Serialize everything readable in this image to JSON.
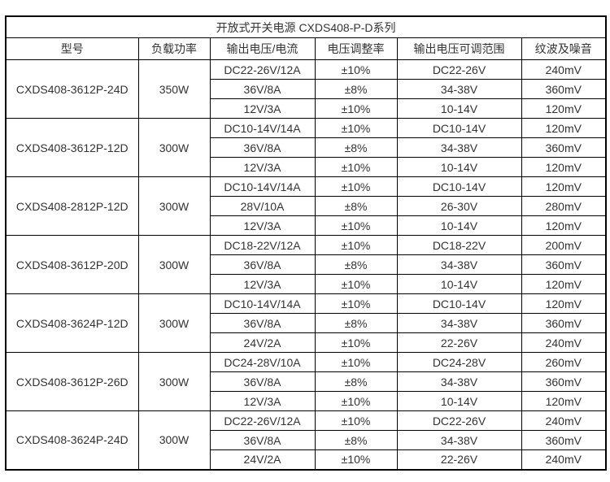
{
  "table": {
    "title": "开放式开关电源 CXDS408-P-D系列",
    "columns": [
      "型号",
      "负载功率",
      "输出电压/电流",
      "电压调整率",
      "输出电压可调范围",
      "纹波及噪音"
    ],
    "groups": [
      {
        "model": "CXDS408-3612P-24D",
        "power": "350W",
        "rows": [
          {
            "output": "DC22-26V/12A",
            "regulation": "±10%",
            "range": "DC22-26V",
            "ripple": "240mV"
          },
          {
            "output": "36V/8A",
            "regulation": "±8%",
            "range": "34-38V",
            "ripple": "360mV"
          },
          {
            "output": "12V/3A",
            "regulation": "±10%",
            "range": "10-14V",
            "ripple": "120mV"
          }
        ]
      },
      {
        "model": "CXDS408-3612P-12D",
        "power": "300W",
        "rows": [
          {
            "output": "DC10-14V/14A",
            "regulation": "±10%",
            "range": "DC10-14V",
            "ripple": "120mV"
          },
          {
            "output": "36V/8A",
            "regulation": "±8%",
            "range": "34-38V",
            "ripple": "360mV"
          },
          {
            "output": "12V/3A",
            "regulation": "±10%",
            "range": "10-14V",
            "ripple": "120mV"
          }
        ]
      },
      {
        "model": "CXDS408-2812P-12D",
        "power": "300W",
        "rows": [
          {
            "output": "DC10-14V/14A",
            "regulation": "±10%",
            "range": "DC10-14V",
            "ripple": "120mV"
          },
          {
            "output": "28V/10A",
            "regulation": "±8%",
            "range": "26-30V",
            "ripple": "280mV"
          },
          {
            "output": "12V/3A",
            "regulation": "±10%",
            "range": "10-14V",
            "ripple": "120mV"
          }
        ]
      },
      {
        "model": "CXDS408-3612P-20D",
        "power": "300W",
        "rows": [
          {
            "output": "DC18-22V/12A",
            "regulation": "±10%",
            "range": "DC18-22V",
            "ripple": "200mV"
          },
          {
            "output": "36V/8A",
            "regulation": "±8%",
            "range": "34-38V",
            "ripple": "360mV"
          },
          {
            "output": "12V/3A",
            "regulation": "±10%",
            "range": "10-14V",
            "ripple": "120mV"
          }
        ]
      },
      {
        "model": "CXDS408-3624P-12D",
        "power": "300W",
        "rows": [
          {
            "output": "DC10-14V/14A",
            "regulation": "±10%",
            "range": "DC10-14V",
            "ripple": "120mV"
          },
          {
            "output": "36V/8A",
            "regulation": "±8%",
            "range": "34-38V",
            "ripple": "360mV"
          },
          {
            "output": "24V/2A",
            "regulation": "±10%",
            "range": "22-26V",
            "ripple": "240mV"
          }
        ]
      },
      {
        "model": "CXDS408-3612P-26D",
        "power": "300W",
        "rows": [
          {
            "output": "DC24-28V/10A",
            "regulation": "±10%",
            "range": "DC24-28V",
            "ripple": "260mV"
          },
          {
            "output": "36V/8A",
            "regulation": "±8%",
            "range": "34-38V",
            "ripple": "360mV"
          },
          {
            "output": "12V/3A",
            "regulation": "±10%",
            "range": "10-14V",
            "ripple": "120mV"
          }
        ]
      },
      {
        "model": "CXDS408-3624P-24D",
        "power": "300W",
        "rows": [
          {
            "output": "DC22-26V/12A",
            "regulation": "±10%",
            "range": "DC22-26V",
            "ripple": "240mV"
          },
          {
            "output": "36V/8A",
            "regulation": "±8%",
            "range": "34-38V",
            "ripple": "360mV"
          },
          {
            "output": "24V/2A",
            "regulation": "±10%",
            "range": "22-26V",
            "ripple": "240mV"
          }
        ]
      }
    ]
  }
}
